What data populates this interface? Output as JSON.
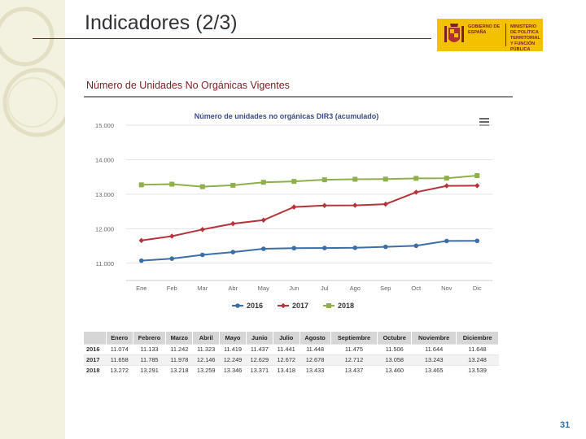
{
  "slide": {
    "title": "Indicadores (2/3)",
    "section_heading": "Número de Unidades No Orgánicas Vigentes",
    "page_number": "31"
  },
  "logo": {
    "left_text": "GOBIERNO DE ESPAÑA",
    "right_text": "MINISTERIO DE POLÍTICA TERRITORIAL Y FUNCIÓN PÚBLICA",
    "color": "#f2c200"
  },
  "chart_data": {
    "type": "line",
    "title": "Número de unidades no orgánicas DIR3 (acumulado)",
    "categories": [
      "Ene",
      "Feb",
      "Mar",
      "Abr",
      "May",
      "Jun",
      "Jul",
      "Ago",
      "Sep",
      "Oct",
      "Nov",
      "Dic"
    ],
    "ylim": [
      10500,
      15000
    ],
    "yticks": [
      11000,
      12000,
      13000,
      14000,
      15000
    ],
    "ytick_labels": [
      "11.000",
      "12.000",
      "13.000",
      "14.000",
      "15.000"
    ],
    "grid": true,
    "legend_position": "bottom",
    "series": [
      {
        "name": "2016",
        "color": "#3b6ea5",
        "marker": "circle",
        "values": [
          11074,
          11133,
          11242,
          11323,
          11419,
          11437,
          11441,
          11448,
          11475,
          11506,
          11644,
          11648
        ]
      },
      {
        "name": "2017",
        "color": "#b5343a",
        "marker": "diamond",
        "values": [
          11658,
          11785,
          11978,
          12146,
          12249,
          12629,
          12672,
          12678,
          12712,
          13058,
          13243,
          13248
        ]
      },
      {
        "name": "2018",
        "color": "#8fae4c",
        "marker": "square",
        "values": [
          13272,
          13291,
          13218,
          13259,
          13346,
          13371,
          13418,
          13433,
          13437,
          13460,
          13465,
          13539
        ]
      }
    ]
  },
  "table": {
    "headers": [
      "",
      "Enero",
      "Febrero",
      "Marzo",
      "Abril",
      "Mayo",
      "Junio",
      "Julio",
      "Agosto",
      "Septiembre",
      "Octubre",
      "Noviembre",
      "Diciembre"
    ],
    "rows": [
      [
        "2016",
        "11.074",
        "11.133",
        "11.242",
        "11.323",
        "11.419",
        "11.437",
        "11.441",
        "11.448",
        "11.475",
        "11.506",
        "11.644",
        "11.648"
      ],
      [
        "2017",
        "11.658",
        "11.785",
        "11.978",
        "12.146",
        "12.249",
        "12.629",
        "12.672",
        "12.678",
        "12.712",
        "13.058",
        "13.243",
        "13.248"
      ],
      [
        "2018",
        "13.272",
        "13.291",
        "13.218",
        "13.259",
        "13.346",
        "13.371",
        "13.418",
        "13.433",
        "13.437",
        "13.460",
        "13.465",
        "13.539"
      ]
    ]
  }
}
